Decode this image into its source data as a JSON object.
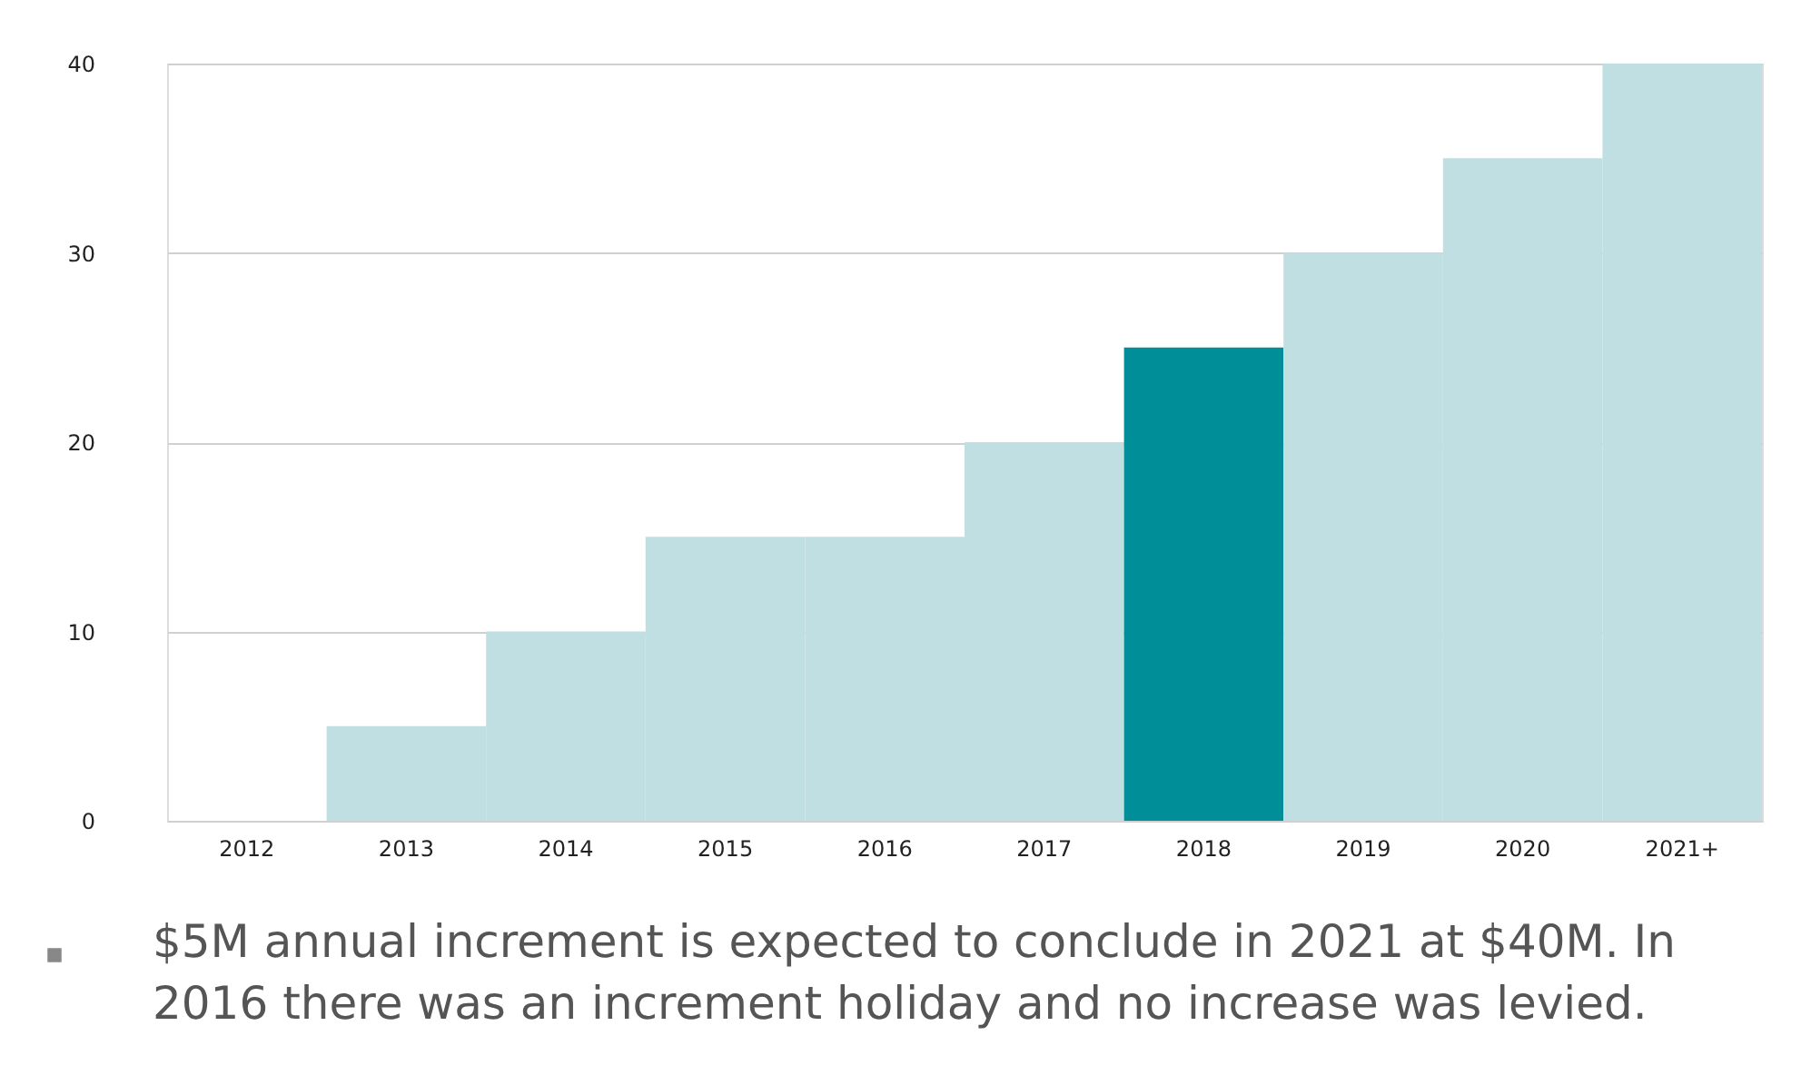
{
  "chart_data": {
    "type": "bar",
    "categories": [
      "2012",
      "2013",
      "2014",
      "2015",
      "2016",
      "2017",
      "2018",
      "2019",
      "2020",
      "2021+"
    ],
    "values": [
      0,
      5,
      10,
      15,
      15,
      20,
      25,
      30,
      35,
      40
    ],
    "colors": [
      "#c0dfe3",
      "#c0dfe3",
      "#c0dfe3",
      "#c0dfe3",
      "#c0dfe3",
      "#c0dfe3",
      "#008f98",
      "#c0dfe3",
      "#c0dfe3",
      "#c0dfe3"
    ],
    "ylim": [
      0,
      40
    ],
    "yticks": [
      0,
      10,
      20,
      30,
      40
    ],
    "grid": "y",
    "annotations": [
      "$5M annual increment is expected to conclude in 2021 at $40M. In 2016 there was an increment holiday and no increase was levied."
    ]
  }
}
